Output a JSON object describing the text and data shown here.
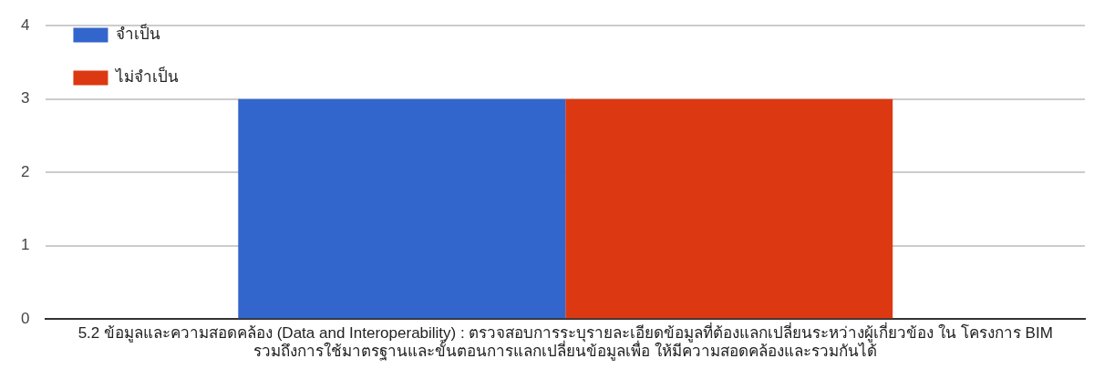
{
  "chart_data": {
    "type": "bar",
    "categories": [
      "5.2 ข้อมูลและความสอดคล้อง (Data and Interoperability) : ตรวจสอบการระบุรายละเอียดข้อมูลที่ต้องแลกเปลี่ยนระหว่างผู้เกี่ยวข้อง ใน โครงการ BIM รวมถึงการใช้มาตรฐานและขั้นตอนการแลกเปลี่ยนข้อมูลเพื่อ ให้มีความสอดคล้องและรวมกันได้"
    ],
    "series": [
      {
        "name": "จำเป็น",
        "color": "#3366cc",
        "values": [
          3
        ]
      },
      {
        "name": "ไม่จำเป็น",
        "color": "#dc3912",
        "values": [
          3
        ]
      }
    ],
    "ylim": [
      0,
      4
    ],
    "yticks": [
      0,
      1,
      2,
      3,
      4
    ],
    "grid": "y",
    "legend": "top left"
  }
}
